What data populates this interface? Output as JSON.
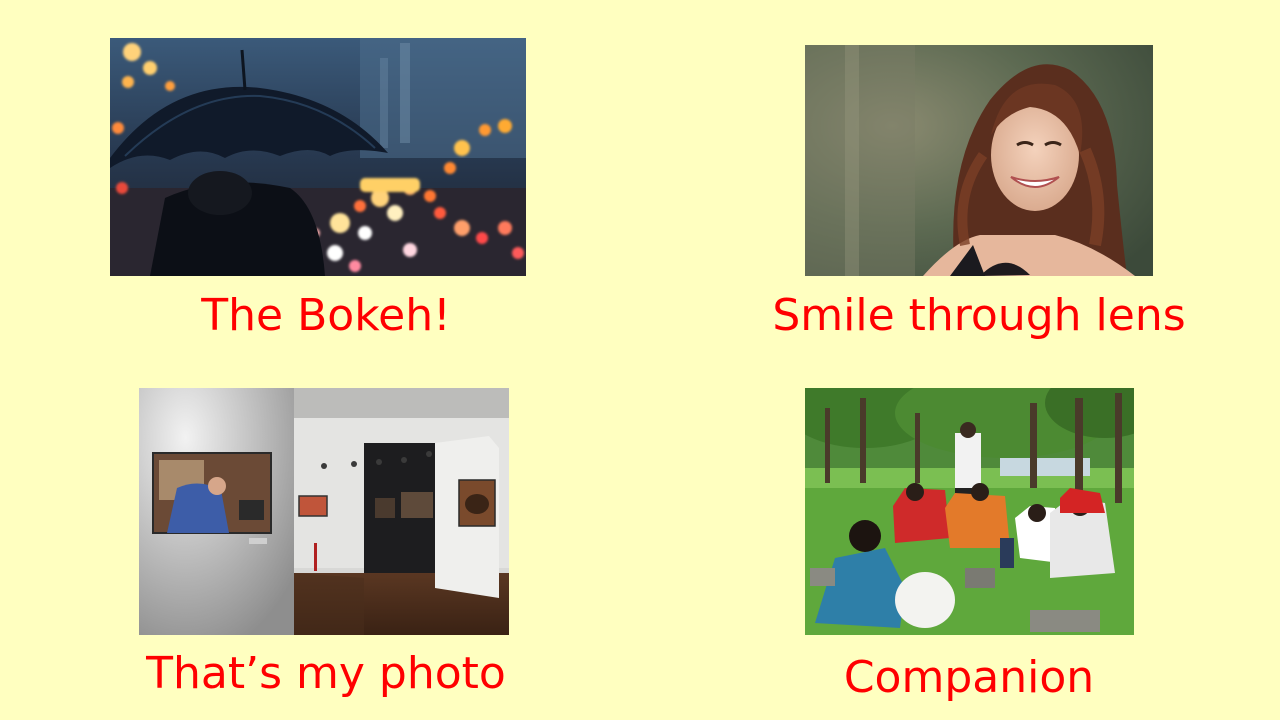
{
  "slide": {
    "background": "#FFFFC0",
    "caption_color": "#FF0000",
    "tiles": [
      {
        "caption": "The Bokeh!",
        "image": "umbrella-bokeh-night-street-photo"
      },
      {
        "caption": "Smile through lens",
        "image": "smiling-woman-portrait-photo"
      },
      {
        "caption": "That’s my photo",
        "image": "gallery-exhibition-room-photo"
      },
      {
        "caption": "Companion",
        "image": "group-of-photographers-in-park-photo"
      }
    ]
  }
}
